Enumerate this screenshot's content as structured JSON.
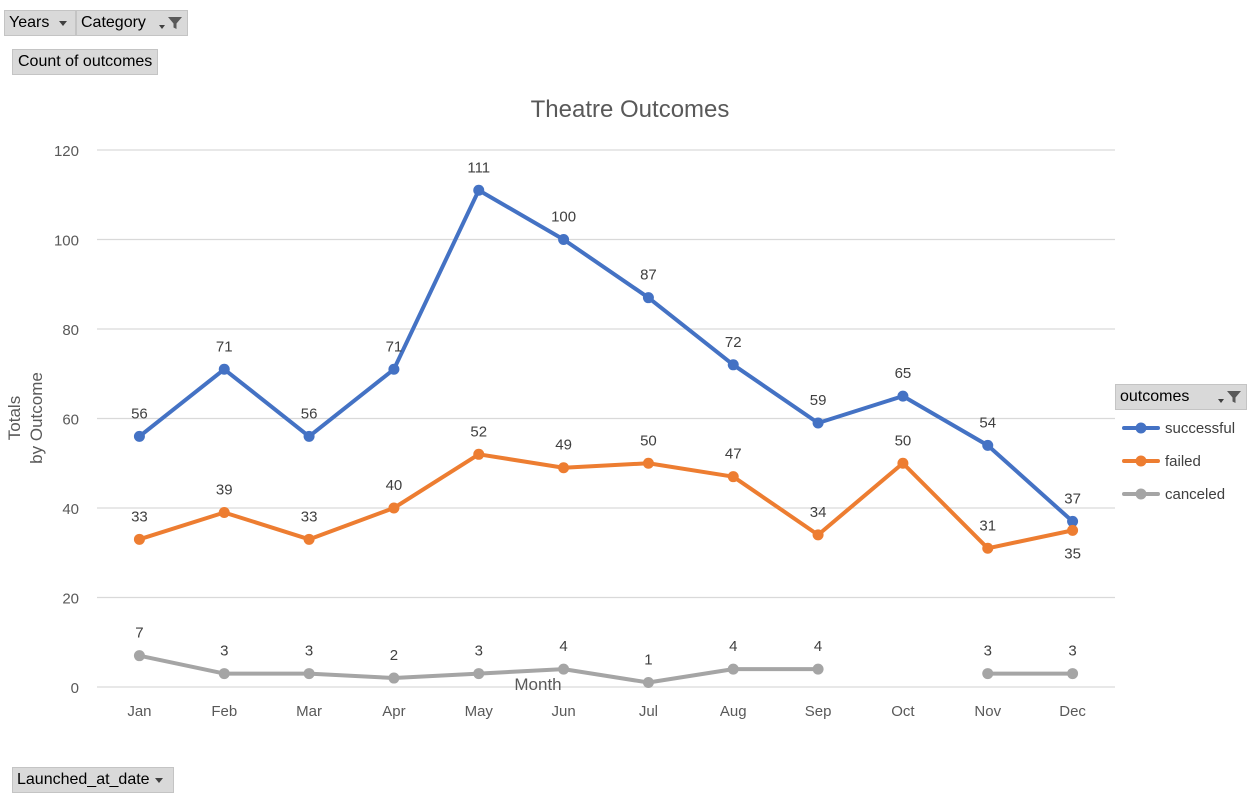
{
  "pivot_fields": {
    "years": "Years",
    "category": "Category",
    "value_field": "Count of outcomes",
    "legend_field": "outcomes",
    "axis_field": "Launched_at_date"
  },
  "icons": {
    "dropdown": "chevron-down-icon",
    "filter": "funnel-filter-icon"
  },
  "chart_data": {
    "type": "line",
    "title": "Theatre Outcomes",
    "xlabel": "Month",
    "ylabel_lines": [
      "Totals",
      "by Outcome"
    ],
    "categories": [
      "Jan",
      "Feb",
      "Mar",
      "Apr",
      "May",
      "Jun",
      "Jul",
      "Aug",
      "Sep",
      "Oct",
      "Nov",
      "Dec"
    ],
    "ylim": [
      0,
      120
    ],
    "yticks": [
      0,
      20,
      40,
      60,
      80,
      100,
      120
    ],
    "grid": true,
    "legend_position": "right",
    "series": [
      {
        "name": "successful",
        "color": "#4472c4",
        "values": [
          56,
          71,
          56,
          71,
          111,
          100,
          87,
          72,
          59,
          65,
          54,
          37
        ],
        "label_position": [
          "above",
          "above",
          "above",
          "above",
          "above",
          "above",
          "above",
          "above",
          "above",
          "above",
          "above",
          "above"
        ]
      },
      {
        "name": "failed",
        "color": "#ed7d31",
        "values": [
          33,
          39,
          33,
          40,
          52,
          49,
          50,
          47,
          34,
          50,
          31,
          35
        ],
        "label_position": [
          "above",
          "above",
          "above",
          "above",
          "above",
          "above",
          "above",
          "above",
          "above",
          "above",
          "above",
          "below"
        ]
      },
      {
        "name": "canceled",
        "color": "#a5a5a5",
        "values": [
          7,
          3,
          3,
          2,
          3,
          4,
          1,
          4,
          4,
          null,
          3,
          3
        ],
        "label_position": [
          "above",
          "above",
          "above",
          "above",
          "above",
          "above",
          "above",
          "above",
          "above",
          "above",
          "above",
          "above"
        ]
      }
    ]
  }
}
